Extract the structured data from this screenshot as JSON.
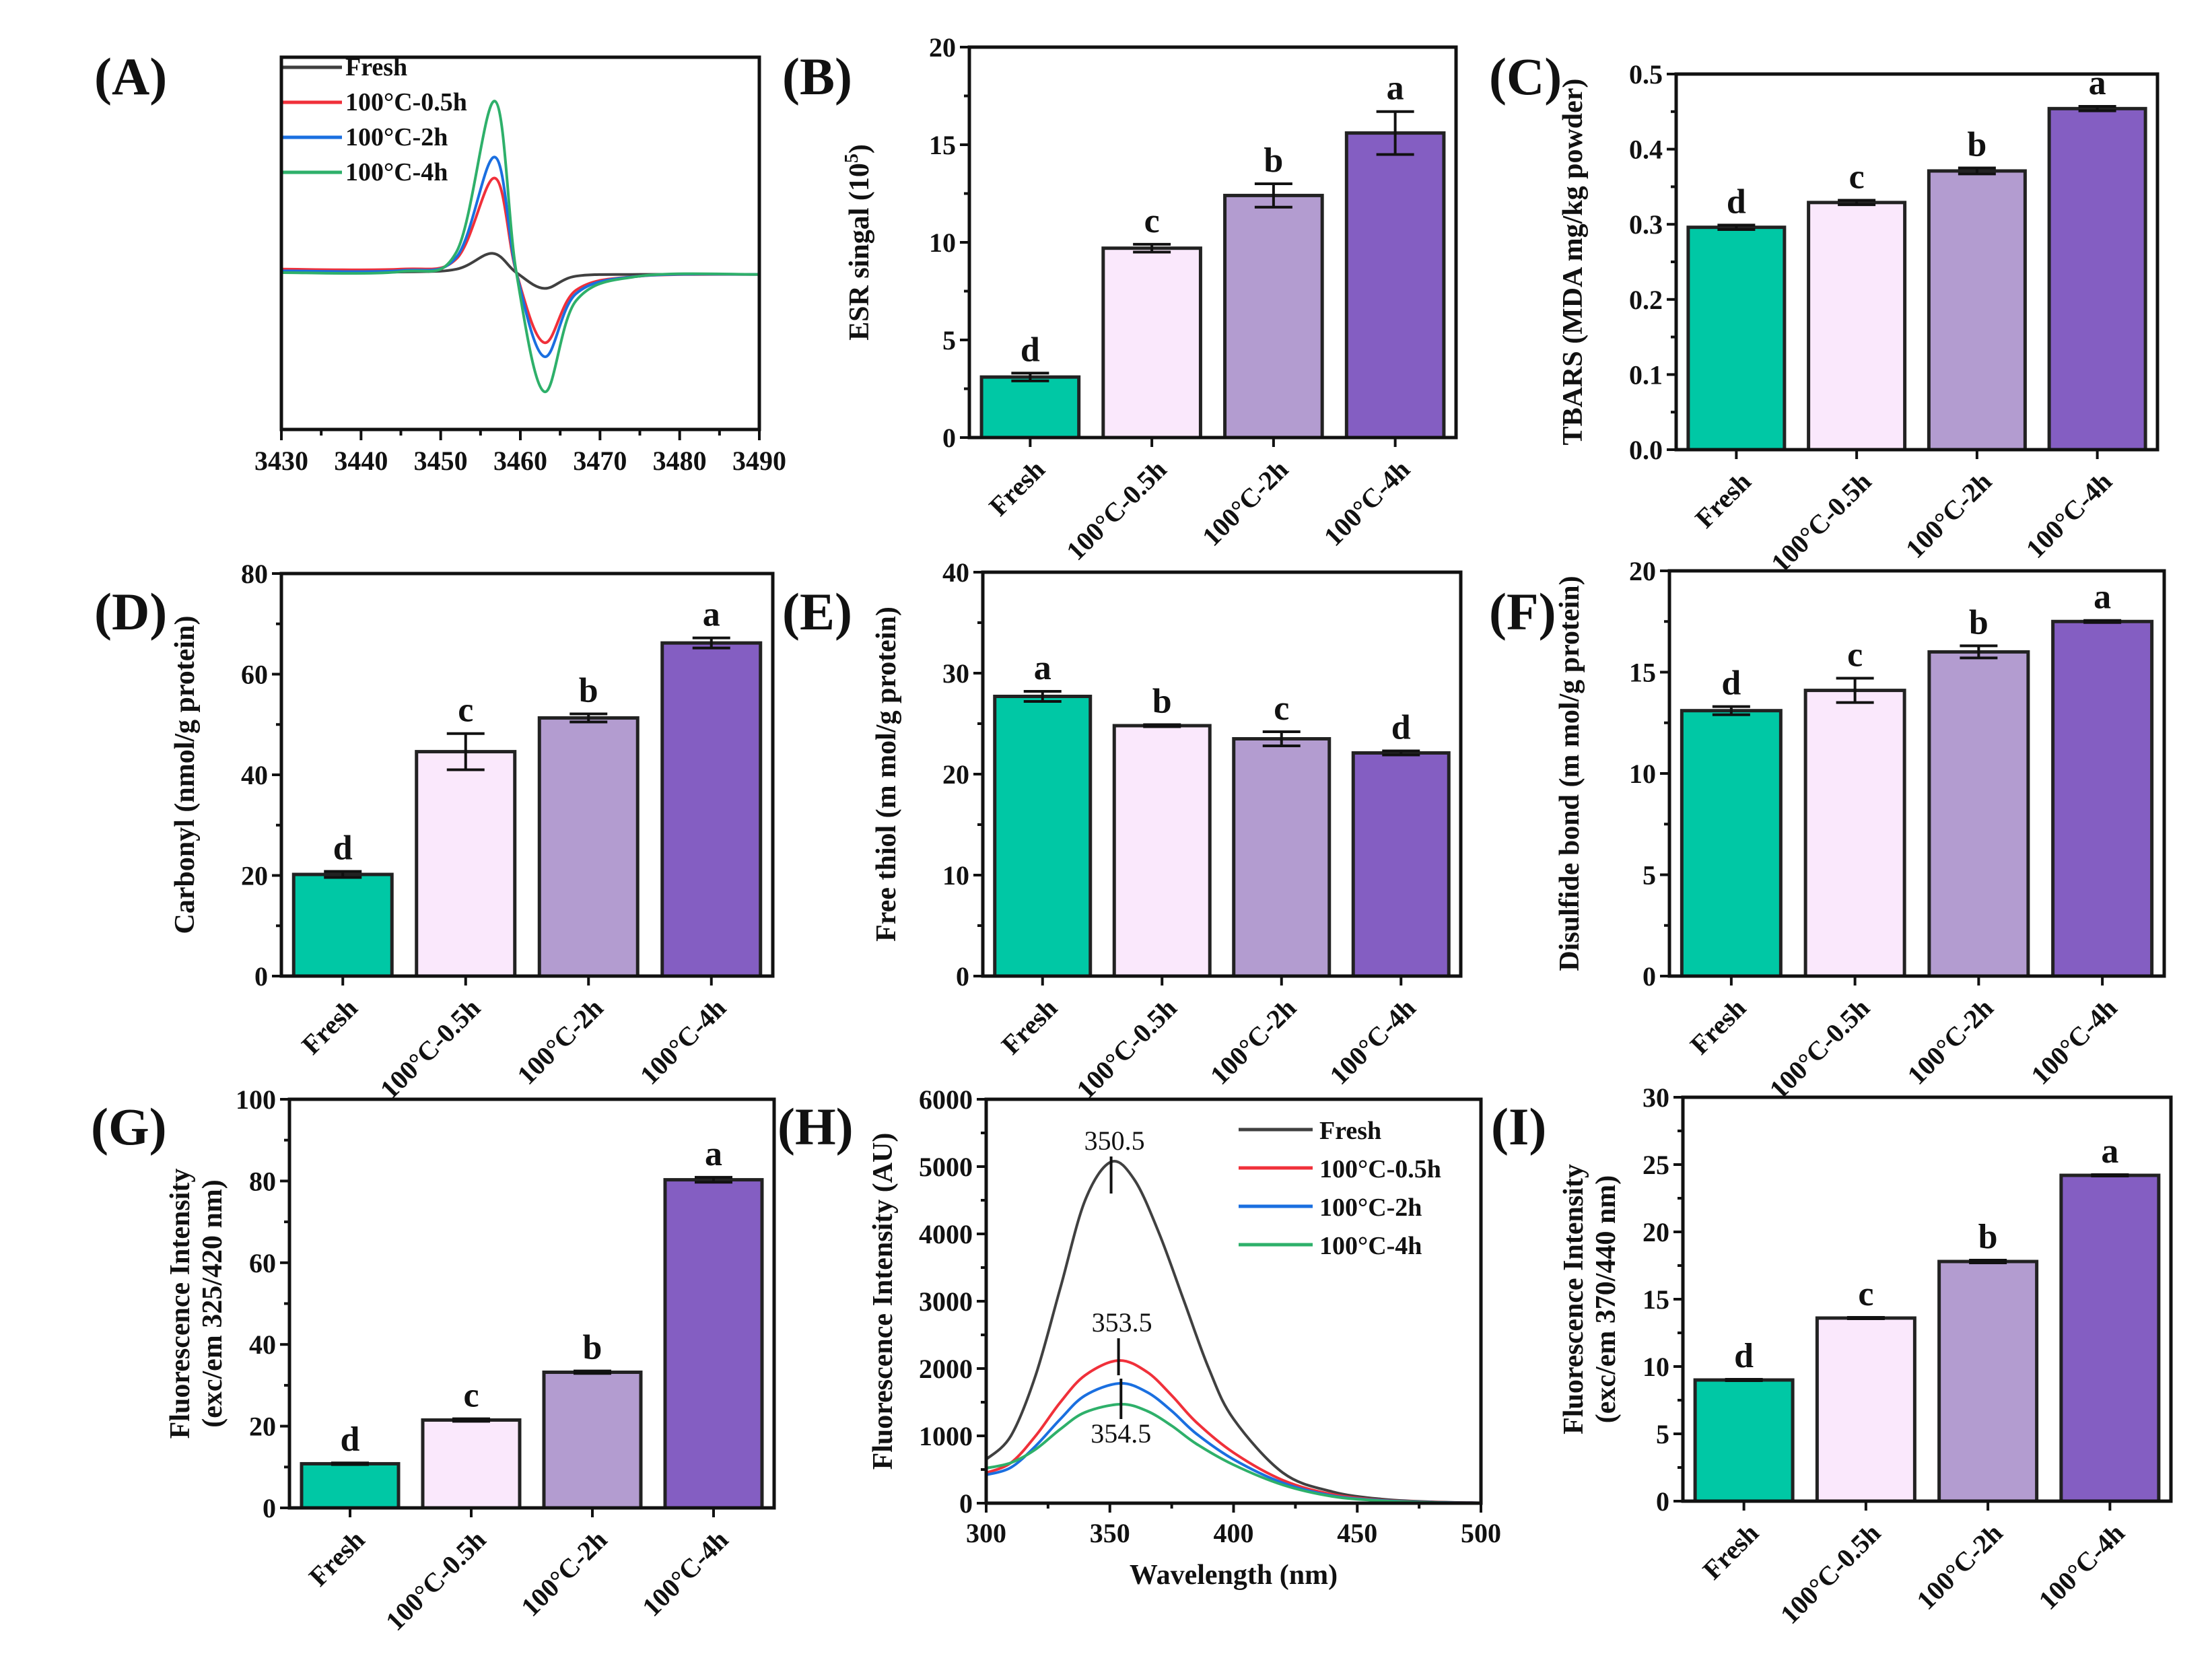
{
  "figure": {
    "categories": [
      "Fresh",
      "100°C-0.5h",
      "100°C-2h",
      "100°C-4h"
    ],
    "bar_colors": [
      "#00c8a5",
      "#fae8fc",
      "#b39cd0",
      "#845ec2"
    ],
    "line_colors": {
      "Fresh": "#404040",
      "100°C-0.5h": "#f0303a",
      "100°C-2h": "#1a6fe0",
      "100°C-4h": "#2eb06a"
    }
  },
  "chart_data": [
    {
      "id": "A",
      "panel_label": "(A)",
      "type": "line",
      "title": "",
      "xlabel": "",
      "ylabel": "",
      "xlim": [
        3430,
        3490
      ],
      "x_ticks": [
        "3430",
        "3440",
        "3450",
        "3460",
        "3470",
        "3480",
        "3490"
      ],
      "y_ticks": [],
      "legend": {
        "placement": "top-left",
        "entries": [
          "Fresh",
          "100°C-0.5h",
          "100°C-2h",
          "100°C-4h"
        ]
      },
      "series": [
        {
          "name": "Fresh",
          "x": [
            3430,
            3445,
            3452,
            3456.5,
            3459.5,
            3463,
            3467,
            3475,
            3490
          ],
          "y": [
            0.0,
            0.02,
            0.1,
            0.55,
            0.0,
            -0.45,
            -0.1,
            -0.05,
            -0.05
          ]
        },
        {
          "name": "100°C-0.5h",
          "x": [
            3430,
            3445,
            3452,
            3456.8,
            3459.5,
            3463,
            3467,
            3475,
            3490
          ],
          "y": [
            0.1,
            0.1,
            0.4,
            2.7,
            0.0,
            -2.0,
            -0.5,
            -0.1,
            -0.05
          ]
        },
        {
          "name": "100°C-2h",
          "x": [
            3430,
            3445,
            3452,
            3456.8,
            3459.5,
            3463,
            3467,
            3475,
            3490
          ],
          "y": [
            0.05,
            0.06,
            0.45,
            3.3,
            0.0,
            -2.4,
            -0.6,
            -0.1,
            -0.05
          ]
        },
        {
          "name": "100°C-4h",
          "x": [
            3430,
            3445,
            3452,
            3456.8,
            3459.5,
            3463,
            3467,
            3475,
            3490
          ],
          "y": [
            0.0,
            0.03,
            0.6,
            4.9,
            0.0,
            -3.4,
            -0.8,
            -0.1,
            -0.05
          ]
        }
      ]
    },
    {
      "id": "B",
      "panel_label": "(B)",
      "type": "bar",
      "ylabel": "ESR singal (10",
      "ylabel_sup": "5",
      "ylabel_end": ")",
      "ylim": [
        0,
        20
      ],
      "y_ticks": [
        0,
        5,
        10,
        15,
        20
      ],
      "values": [
        3.1,
        9.7,
        12.4,
        15.6
      ],
      "errors": [
        0.2,
        0.2,
        0.6,
        1.1
      ],
      "letters": [
        "d",
        "c",
        "b",
        "a"
      ]
    },
    {
      "id": "C",
      "panel_label": "(C)",
      "type": "bar",
      "ylabel": "TBARS (MDA mg/kg powder)",
      "ylim": [
        0,
        0.5
      ],
      "y_ticks": [
        "0.0",
        "0.1",
        "0.2",
        "0.3",
        "0.4",
        "0.5"
      ],
      "values": [
        0.296,
        0.329,
        0.371,
        0.454
      ],
      "errors": [
        0.003,
        0.003,
        0.004,
        0.003
      ],
      "letters": [
        "d",
        "c",
        "b",
        "a"
      ]
    },
    {
      "id": "D",
      "panel_label": "(D)",
      "type": "bar",
      "ylabel": "Carbonyl (nmol/g protein)",
      "ylim": [
        0,
        80
      ],
      "y_ticks": [
        0,
        20,
        40,
        60,
        80
      ],
      "values": [
        20.2,
        44.6,
        51.3,
        66.2
      ],
      "errors": [
        0.6,
        3.6,
        0.8,
        1.0
      ],
      "letters": [
        "d",
        "c",
        "b",
        "a"
      ]
    },
    {
      "id": "E",
      "panel_label": "(E)",
      "type": "bar",
      "ylabel": "Free thiol (m mol/g protein)",
      "ylim": [
        0,
        40
      ],
      "y_ticks": [
        0,
        10,
        20,
        30,
        40
      ],
      "values": [
        27.7,
        24.8,
        23.5,
        22.1
      ],
      "errors": [
        0.5,
        0.1,
        0.7,
        0.2
      ],
      "letters": [
        "a",
        "b",
        "c",
        "d"
      ]
    },
    {
      "id": "F",
      "panel_label": "(F)",
      "type": "bar",
      "ylabel": "Disulfide bond (m mol/g protein)",
      "ylim": [
        0,
        20
      ],
      "y_ticks": [
        0,
        5,
        10,
        15,
        20
      ],
      "values": [
        13.1,
        14.1,
        16.0,
        17.5
      ],
      "errors": [
        0.2,
        0.6,
        0.3,
        0.05
      ],
      "letters": [
        "d",
        "c",
        "b",
        "a"
      ]
    },
    {
      "id": "G",
      "panel_label": "(G)",
      "type": "bar",
      "ylabel": "Fluorescence Intensity",
      "ylabel2": "(exc/em 325/420 nm)",
      "ylim": [
        0,
        100
      ],
      "y_ticks": [
        0,
        20,
        40,
        60,
        80,
        100
      ],
      "values": [
        10.8,
        21.5,
        33.2,
        80.3
      ],
      "errors": [
        0.2,
        0.3,
        0.3,
        0.6
      ],
      "letters": [
        "d",
        "c",
        "b",
        "a"
      ]
    },
    {
      "id": "H",
      "panel_label": "(H)",
      "type": "line",
      "xlabel": "Wavelength (nm)",
      "ylabel": "Fluorescence Intensity (AU)",
      "xlim": [
        300,
        500
      ],
      "ylim": [
        0,
        6000
      ],
      "x_ticks": [
        300,
        350,
        400,
        450,
        500
      ],
      "y_ticks": [
        0,
        1000,
        2000,
        3000,
        4000,
        5000,
        6000
      ],
      "legend": {
        "placement": "top-right",
        "entries": [
          "Fresh",
          "100°C-0.5h",
          "100°C-2h",
          "100°C-4h"
        ]
      },
      "annotations": [
        {
          "text": "350.5",
          "x": 350.5,
          "series": "Fresh"
        },
        {
          "text": "353.5",
          "x": 353.5,
          "series": "100°C-0.5h"
        },
        {
          "text": "354.5",
          "x": 354.5,
          "series": "100°C-4h"
        }
      ],
      "series": [
        {
          "name": "Fresh",
          "x": [
            300,
            310,
            320,
            330,
            340,
            350.5,
            360,
            370,
            380,
            390,
            400,
            420,
            440,
            460,
            480,
            500
          ],
          "y": [
            650,
            1000,
            1900,
            3200,
            4500,
            5070,
            4800,
            4000,
            3000,
            2000,
            1250,
            450,
            170,
            60,
            20,
            5
          ]
        },
        {
          "name": "100°C-0.5h",
          "x": [
            300,
            310,
            320,
            330,
            340,
            353.5,
            365,
            375,
            385,
            400,
            420,
            440,
            460,
            480,
            500
          ],
          "y": [
            450,
            600,
            1000,
            1500,
            1900,
            2120,
            1950,
            1600,
            1200,
            750,
            340,
            130,
            45,
            15,
            5
          ]
        },
        {
          "name": "100°C-2h",
          "x": [
            300,
            310,
            320,
            330,
            340,
            354,
            365,
            375,
            385,
            400,
            420,
            440,
            460,
            480,
            500
          ],
          "y": [
            420,
            530,
            850,
            1250,
            1600,
            1780,
            1650,
            1370,
            1030,
            650,
            300,
            110,
            40,
            12,
            5
          ]
        },
        {
          "name": "100°C-4h",
          "x": [
            300,
            310,
            320,
            330,
            340,
            354.5,
            365,
            375,
            385,
            400,
            420,
            440,
            460,
            480,
            500
          ],
          "y": [
            520,
            600,
            800,
            1100,
            1350,
            1470,
            1370,
            1150,
            880,
            570,
            270,
            100,
            35,
            10,
            5
          ]
        }
      ]
    },
    {
      "id": "I",
      "panel_label": "(I)",
      "type": "bar",
      "ylabel": "Fluorescence Intensity",
      "ylabel2": "(exc/em 370/440 nm)",
      "ylim": [
        0,
        30
      ],
      "y_ticks": [
        0,
        5,
        10,
        15,
        20,
        25,
        30
      ],
      "values": [
        9.0,
        13.6,
        17.8,
        24.2
      ],
      "errors": [
        0.05,
        0.05,
        0.1,
        0.05
      ],
      "letters": [
        "d",
        "c",
        "b",
        "a"
      ]
    }
  ]
}
